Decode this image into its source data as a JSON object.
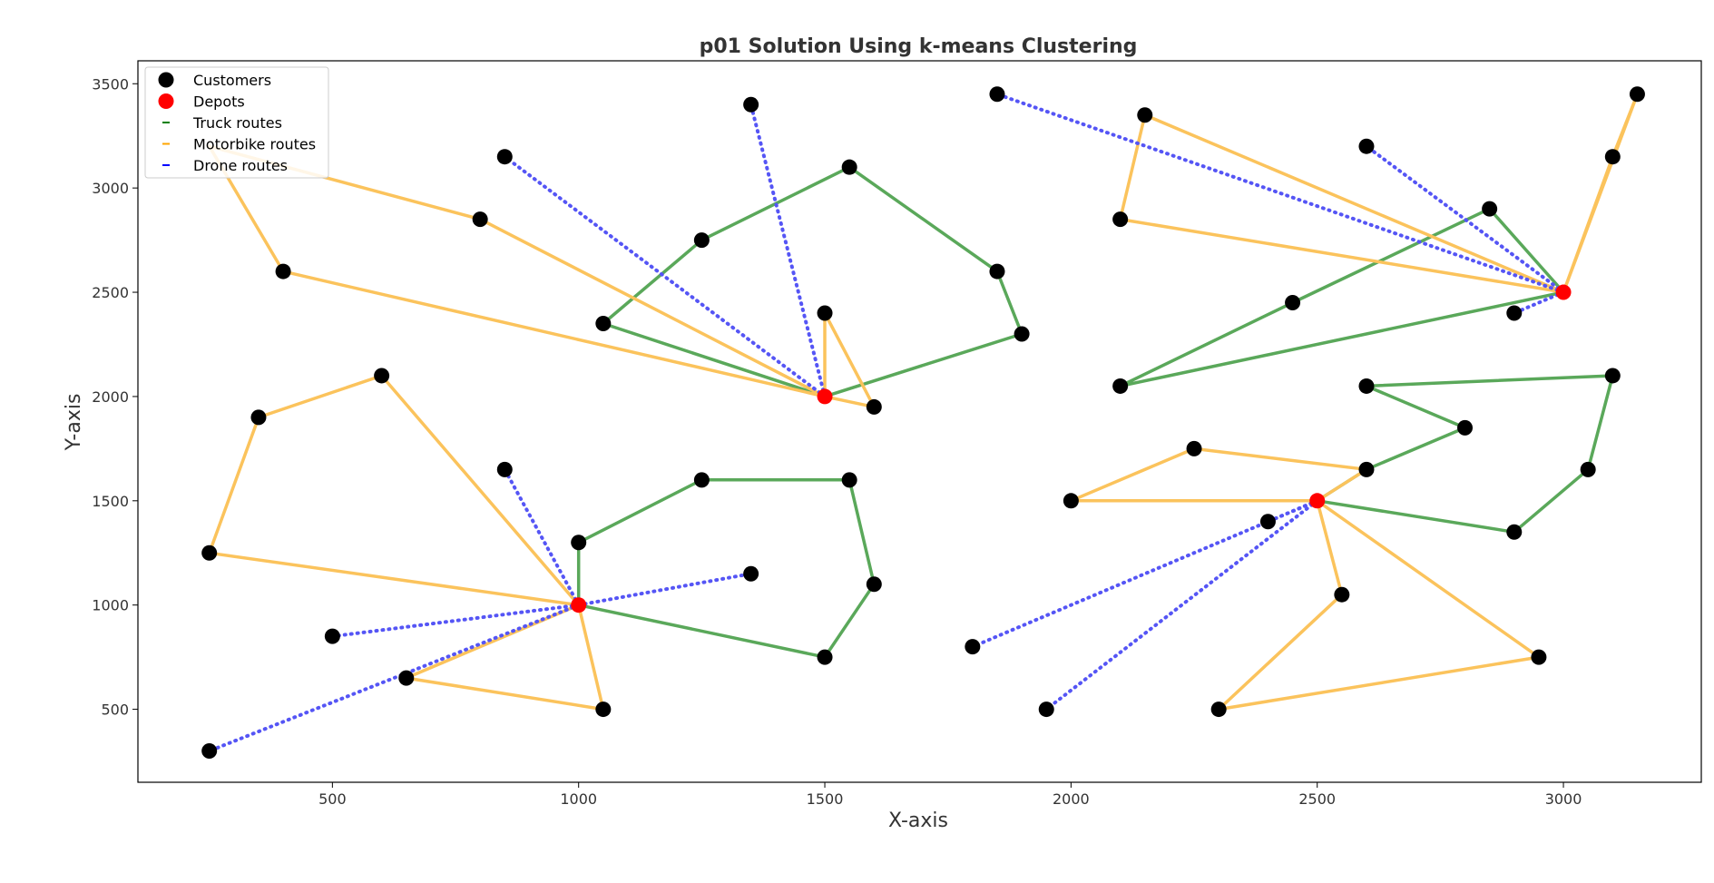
{
  "chart_data": {
    "type": "scatter",
    "title": "p01 Solution Using k-means Clustering",
    "xlabel": "X-axis",
    "ylabel": "Y-axis",
    "xlim": [
      105,
      3280
    ],
    "ylim": [
      150,
      3610
    ],
    "xticks": [
      500,
      1000,
      1500,
      2000,
      2500,
      3000
    ],
    "yticks": [
      500,
      1000,
      1500,
      2000,
      2500,
      3000,
      3500
    ],
    "grid": false,
    "legend_position": "top-left",
    "legend": [
      {
        "label": "Customers",
        "kind": "dot",
        "color": "#000000"
      },
      {
        "label": "Depots",
        "kind": "dot",
        "color": "#ff0000"
      },
      {
        "label": "Truck routes",
        "kind": "dash",
        "color": "#008000"
      },
      {
        "label": "Motorbike routes",
        "kind": "dash",
        "color": "#ffa500"
      },
      {
        "label": "Drone routes",
        "kind": "dash",
        "color": "#0000ff"
      }
    ],
    "colors": {
      "customer": "#000000",
      "depot": "#ff0000",
      "truck": "#5aa85a",
      "motorbike": "#fbc35c",
      "drone": "#5555f5"
    },
    "depots": [
      {
        "x": 1500,
        "y": 2000
      },
      {
        "x": 3000,
        "y": 2500
      },
      {
        "x": 1000,
        "y": 1000
      },
      {
        "x": 2500,
        "y": 1500
      }
    ],
    "customers": [
      {
        "x": 1350,
        "y": 3400
      },
      {
        "x": 850,
        "y": 3150
      },
      {
        "x": 1550,
        "y": 3100
      },
      {
        "x": 800,
        "y": 2850
      },
      {
        "x": 1250,
        "y": 2750
      },
      {
        "x": 400,
        "y": 2600
      },
      {
        "x": 1850,
        "y": 2600
      },
      {
        "x": 1500,
        "y": 2400
      },
      {
        "x": 1050,
        "y": 2350
      },
      {
        "x": 1900,
        "y": 2300
      },
      {
        "x": 600,
        "y": 2100
      },
      {
        "x": 1600,
        "y": 1950
      },
      {
        "x": 350,
        "y": 1900
      },
      {
        "x": 850,
        "y": 1650
      },
      {
        "x": 1250,
        "y": 1600
      },
      {
        "x": 1550,
        "y": 1600
      },
      {
        "x": 1000,
        "y": 1300
      },
      {
        "x": 250,
        "y": 1250
      },
      {
        "x": 1350,
        "y": 1150
      },
      {
        "x": 1600,
        "y": 1100
      },
      {
        "x": 500,
        "y": 850
      },
      {
        "x": 1500,
        "y": 750
      },
      {
        "x": 650,
        "y": 650
      },
      {
        "x": 1050,
        "y": 500
      },
      {
        "x": 250,
        "y": 300
      },
      {
        "x": 1850,
        "y": 3450
      },
      {
        "x": 3150,
        "y": 3450
      },
      {
        "x": 2150,
        "y": 3350
      },
      {
        "x": 2600,
        "y": 3200
      },
      {
        "x": 3100,
        "y": 3150
      },
      {
        "x": 2850,
        "y": 2900
      },
      {
        "x": 2100,
        "y": 2850
      },
      {
        "x": 2450,
        "y": 2450
      },
      {
        "x": 2900,
        "y": 2400
      },
      {
        "x": 2100,
        "y": 2050
      },
      {
        "x": 2600,
        "y": 2050
      },
      {
        "x": 3100,
        "y": 2100
      },
      {
        "x": 2800,
        "y": 1850
      },
      {
        "x": 2250,
        "y": 1750
      },
      {
        "x": 2600,
        "y": 1650
      },
      {
        "x": 3050,
        "y": 1650
      },
      {
        "x": 2000,
        "y": 1500
      },
      {
        "x": 2400,
        "y": 1400
      },
      {
        "x": 2900,
        "y": 1350
      },
      {
        "x": 2550,
        "y": 1050
      },
      {
        "x": 1800,
        "y": 800
      },
      {
        "x": 2950,
        "y": 750
      },
      {
        "x": 1950,
        "y": 500
      },
      {
        "x": 2300,
        "y": 500
      }
    ],
    "truck_routes": [
      [
        [
          1500,
          2000
        ],
        [
          1050,
          2350
        ],
        [
          1250,
          2750
        ],
        [
          1550,
          3100
        ],
        [
          1850,
          2600
        ],
        [
          1900,
          2300
        ],
        [
          1500,
          2000
        ]
      ],
      [
        [
          3000,
          2500
        ],
        [
          2850,
          2900
        ],
        [
          2450,
          2450
        ],
        [
          2100,
          2050
        ],
        [
          3000,
          2500
        ]
      ],
      [
        [
          1000,
          1000
        ],
        [
          1000,
          1300
        ],
        [
          1250,
          1600
        ],
        [
          1550,
          1600
        ],
        [
          1600,
          1100
        ],
        [
          1500,
          750
        ],
        [
          1000,
          1000
        ]
      ],
      [
        [
          2500,
          1500
        ],
        [
          2600,
          1650
        ],
        [
          2800,
          1850
        ],
        [
          2600,
          2050
        ],
        [
          3100,
          2100
        ],
        [
          3050,
          1650
        ],
        [
          2900,
          1350
        ],
        [
          2500,
          1500
        ]
      ]
    ],
    "motorbike_routes": [
      [
        [
          1500,
          2000
        ],
        [
          800,
          2850
        ],
        [
          250,
          3200
        ],
        [
          400,
          2600
        ],
        [
          1500,
          2000
        ]
      ],
      [
        [
          1500,
          2000
        ],
        [
          1500,
          2400
        ],
        [
          1600,
          1950
        ],
        [
          1500,
          2000
        ]
      ],
      [
        [
          3000,
          2500
        ],
        [
          2150,
          3350
        ],
        [
          2100,
          2850
        ],
        [
          3000,
          2500
        ]
      ],
      [
        [
          3000,
          2500
        ],
        [
          3100,
          3150
        ],
        [
          3150,
          3450
        ],
        [
          3000,
          2500
        ]
      ],
      [
        [
          1000,
          1000
        ],
        [
          250,
          1250
        ],
        [
          350,
          1900
        ],
        [
          600,
          2100
        ],
        [
          1000,
          1000
        ]
      ],
      [
        [
          1000,
          1000
        ],
        [
          650,
          650
        ],
        [
          1050,
          500
        ],
        [
          1000,
          1000
        ]
      ],
      [
        [
          2500,
          1500
        ],
        [
          2000,
          1500
        ],
        [
          2250,
          1750
        ],
        [
          2600,
          1650
        ],
        [
          2500,
          1500
        ]
      ],
      [
        [
          2500,
          1500
        ],
        [
          2550,
          1050
        ],
        [
          2300,
          500
        ],
        [
          2950,
          750
        ],
        [
          2500,
          1500
        ]
      ]
    ],
    "drone_routes": [
      [
        [
          1500,
          2000
        ],
        [
          1350,
          3400
        ]
      ],
      [
        [
          1500,
          2000
        ],
        [
          850,
          3150
        ]
      ],
      [
        [
          3000,
          2500
        ],
        [
          1850,
          3450
        ]
      ],
      [
        [
          3000,
          2500
        ],
        [
          2600,
          3200
        ]
      ],
      [
        [
          3000,
          2500
        ],
        [
          2900,
          2400
        ]
      ],
      [
        [
          1000,
          1000
        ],
        [
          850,
          1650
        ]
      ],
      [
        [
          1000,
          1000
        ],
        [
          1350,
          1150
        ]
      ],
      [
        [
          1000,
          1000
        ],
        [
          500,
          850
        ]
      ],
      [
        [
          1000,
          1000
        ],
        [
          250,
          300
        ]
      ],
      [
        [
          2500,
          1500
        ],
        [
          2400,
          1400
        ]
      ],
      [
        [
          2500,
          1500
        ],
        [
          1800,
          800
        ]
      ],
      [
        [
          2500,
          1500
        ],
        [
          1950,
          500
        ]
      ]
    ]
  }
}
